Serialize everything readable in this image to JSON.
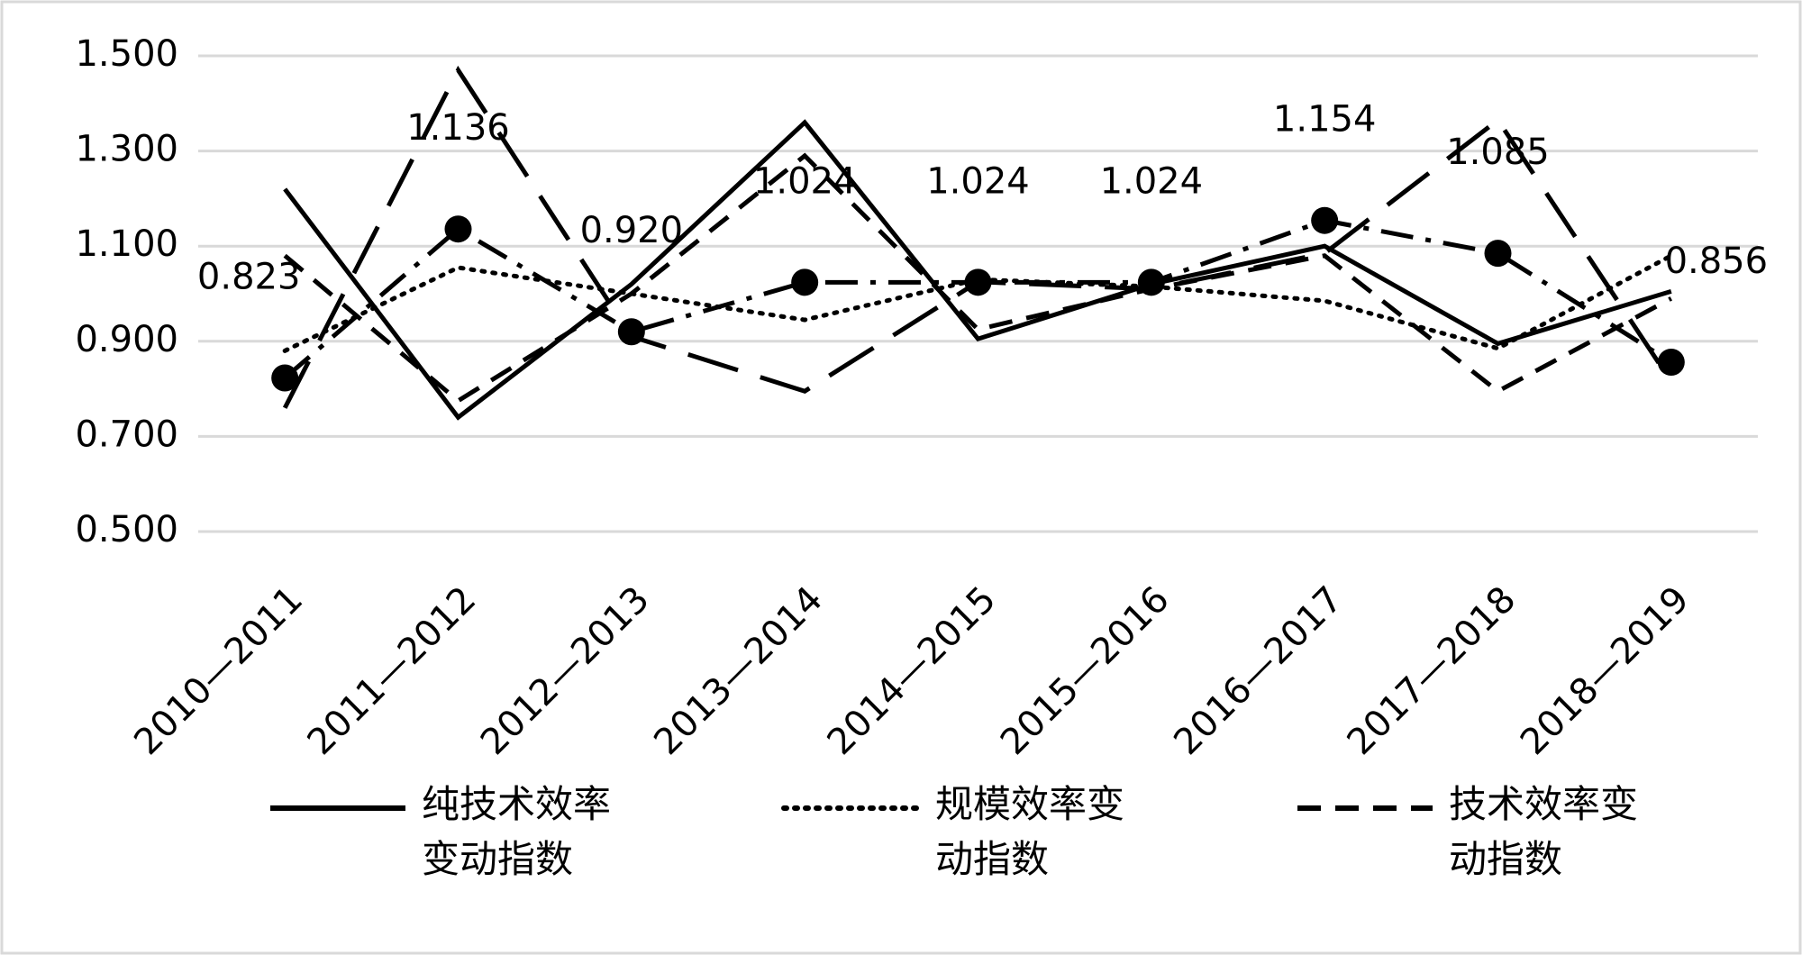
{
  "chart_data": {
    "type": "line",
    "categories": [
      "2010—2011",
      "2011—2012",
      "2012—2013",
      "2013—2014",
      "2014—2015",
      "2015—2016",
      "2016—2017",
      "2017—2018",
      "2018—2019"
    ],
    "ylim": [
      0.5,
      1.5
    ],
    "yticks": [
      {
        "value": 0.5,
        "label": "0.500"
      },
      {
        "value": 0.7,
        "label": "0.700"
      },
      {
        "value": 0.9,
        "label": "0.900"
      },
      {
        "value": 1.1,
        "label": "1.100"
      },
      {
        "value": 1.3,
        "label": "1.300"
      },
      {
        "value": 1.5,
        "label": "1.500"
      }
    ],
    "grid": true,
    "legend": "bottom",
    "series": [
      {
        "name": "纯技术效率变动指数",
        "color": "#000000",
        "style": "solid",
        "values": [
          1.22,
          0.74,
          1.02,
          1.36,
          0.905,
          1.02,
          1.1,
          0.895,
          1.005
        ]
      },
      {
        "name": "规模效率变动指数",
        "color": "#000000",
        "style": "dotted",
        "values": [
          0.88,
          1.055,
          1.0,
          0.945,
          1.03,
          1.015,
          0.985,
          0.885,
          1.08
        ]
      },
      {
        "name": "技术效率变动指数",
        "color": "#000000",
        "style": "dashed",
        "values": [
          1.08,
          0.775,
          1.0,
          1.29,
          0.925,
          1.01,
          1.08,
          0.795,
          0.99
        ]
      },
      {
        "color": "#000000",
        "style": "longdash",
        "values": [
          0.76,
          1.47,
          0.91,
          0.795,
          1.025,
          1.01,
          1.085,
          1.365,
          0.815
        ]
      },
      {
        "color": "#000000",
        "style": "dashdot",
        "markers": true,
        "values": [
          0.823,
          1.136,
          0.92,
          1.024,
          1.024,
          1.024,
          1.154,
          1.085,
          0.856
        ],
        "value_labels": [
          "0.823",
          "1.136",
          "0.920",
          "1.024",
          "1.024",
          "1.024",
          "1.154",
          "1.085",
          "0.856"
        ]
      }
    ]
  }
}
